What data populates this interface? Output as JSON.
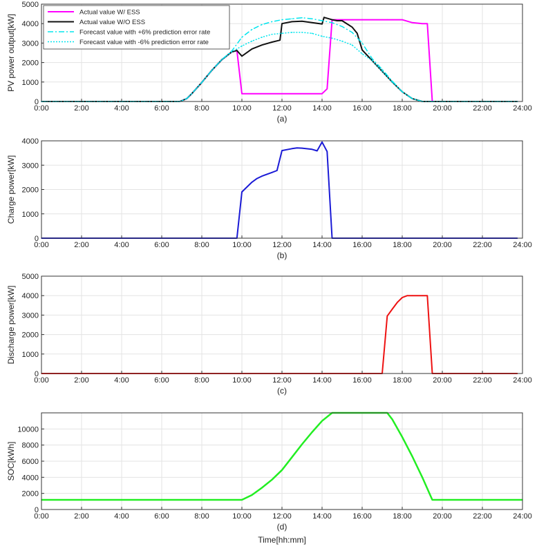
{
  "xlabel": "Time[hh:mm]",
  "chart_data": [
    {
      "id": "a",
      "type": "line",
      "sublabel": "(a)",
      "ylabel": "PV power output[kW]",
      "ylim": [
        0,
        5000
      ],
      "yticks": [
        0,
        1000,
        2000,
        3000,
        4000,
        5000
      ],
      "xlim": [
        0,
        24
      ],
      "xticks": [
        0,
        2,
        4,
        6,
        8,
        10,
        12,
        14,
        16,
        18,
        20,
        22,
        24
      ],
      "xticklabels": [
        "0:00",
        "2:00",
        "4:00",
        "6:00",
        "8:00",
        "10:00",
        "12:00",
        "14:00",
        "16:00",
        "18:00",
        "20:00",
        "22:00",
        "24:00"
      ],
      "grid": true,
      "legend_position": "top-left",
      "series": [
        {
          "name": "Actual value W/ ESS",
          "color": "#ff00ff",
          "dash": "solid",
          "width": 2,
          "x": [
            0,
            6.9,
            7.25,
            7.5,
            8,
            8.5,
            9,
            9.5,
            9.75,
            10,
            10.5,
            11,
            12,
            13,
            14,
            14.25,
            14.5,
            15,
            15.5,
            16,
            16.5,
            17,
            17.25,
            17.5,
            18,
            18.5,
            19,
            19.25,
            19.5,
            20,
            22,
            23.75
          ],
          "y": [
            0,
            0,
            150,
            400,
            980,
            1600,
            2150,
            2550,
            2620,
            400,
            400,
            400,
            400,
            400,
            400,
            650,
            4200,
            4200,
            4200,
            4200,
            4200,
            4200,
            4200,
            4200,
            4200,
            4050,
            4000,
            4000,
            0,
            0,
            0,
            0
          ]
        },
        {
          "name": "Actual value W/O ESS",
          "color": "#111111",
          "dash": "solid",
          "width": 2,
          "x": [
            0,
            6.9,
            7.25,
            7.5,
            8,
            8.5,
            9,
            9.5,
            9.75,
            10,
            10.5,
            11,
            11.5,
            11.9,
            12,
            12.5,
            13,
            13.5,
            14,
            14.1,
            14.5,
            14.75,
            15,
            15.5,
            15.75,
            16,
            16.5,
            17,
            17.5,
            18,
            18.5,
            19,
            19.5,
            20,
            22,
            23.75
          ],
          "y": [
            0,
            0,
            150,
            400,
            980,
            1600,
            2150,
            2550,
            2620,
            2330,
            2700,
            2900,
            3050,
            3150,
            4000,
            4100,
            4120,
            4050,
            3980,
            4320,
            4200,
            4150,
            4150,
            3820,
            3500,
            2650,
            2100,
            1550,
            1000,
            500,
            150,
            0,
            0,
            0,
            0,
            0
          ]
        },
        {
          "name": "Forecast value with +6% prediction error rate",
          "color": "#00e5ee",
          "dash": "8,3,2,3",
          "width": 1.5,
          "x": [
            0,
            6.9,
            7.25,
            7.5,
            8,
            8.5,
            9,
            9.5,
            10,
            10.5,
            11,
            11.5,
            12,
            12.5,
            13,
            13.5,
            14,
            14.5,
            15,
            15.5,
            16,
            16.5,
            17,
            17.5,
            18,
            18.5,
            19,
            19.5,
            20,
            22,
            23.75
          ],
          "y": [
            0,
            0,
            150,
            400,
            980,
            1600,
            2150,
            2600,
            3300,
            3700,
            3950,
            4100,
            4200,
            4250,
            4300,
            4250,
            4150,
            4050,
            3850,
            3550,
            3000,
            2200,
            1650,
            1050,
            500,
            150,
            0,
            0,
            0,
            0,
            0
          ]
        },
        {
          "name": "Forecast value with -6% prediction error rate",
          "color": "#00e5ee",
          "dash": "2,2",
          "width": 1.5,
          "x": [
            0,
            6.9,
            7.25,
            7.5,
            8,
            8.5,
            9,
            9.5,
            10,
            10.5,
            11,
            11.5,
            12,
            12.5,
            13,
            13.5,
            14,
            14.5,
            15,
            15.5,
            16,
            16.5,
            17,
            17.5,
            18,
            18.5,
            19,
            19.5,
            20,
            22,
            23.75
          ],
          "y": [
            0,
            0,
            150,
            400,
            980,
            1600,
            2150,
            2550,
            2850,
            3100,
            3300,
            3450,
            3500,
            3550,
            3550,
            3500,
            3350,
            3250,
            3100,
            2900,
            2450,
            2100,
            1550,
            1000,
            500,
            150,
            0,
            0,
            0,
            0,
            0
          ]
        }
      ]
    },
    {
      "id": "b",
      "type": "line",
      "sublabel": "(b)",
      "ylabel": "Charge power[kW]",
      "ylim": [
        0,
        4000
      ],
      "yticks": [
        0,
        1000,
        2000,
        3000,
        4000
      ],
      "xlim": [
        0,
        24
      ],
      "xticks": [
        0,
        2,
        4,
        6,
        8,
        10,
        12,
        14,
        16,
        18,
        20,
        22,
        24
      ],
      "xticklabels": [
        "0:00",
        "2:00",
        "4:00",
        "6:00",
        "8:00",
        "10:00",
        "12:00",
        "14:00",
        "16:00",
        "18:00",
        "20:00",
        "22:00",
        "24:00"
      ],
      "grid": true,
      "series": [
        {
          "color": "#1a1ad6",
          "dash": "solid",
          "width": 2,
          "x": [
            0,
            9.75,
            10,
            10.5,
            10.75,
            11,
            11.5,
            11.75,
            12,
            12.5,
            12.75,
            13,
            13.5,
            13.75,
            14,
            14.25,
            14.5,
            16,
            18,
            20,
            23.75
          ],
          "y": [
            0,
            0,
            1900,
            2300,
            2450,
            2550,
            2700,
            2780,
            3600,
            3680,
            3710,
            3700,
            3650,
            3590,
            3950,
            3560,
            0,
            0,
            0,
            0,
            0
          ]
        }
      ]
    },
    {
      "id": "c",
      "type": "line",
      "sublabel": "(c)",
      "ylabel": "Discharge power[kW]",
      "ylim": [
        0,
        5000
      ],
      "yticks": [
        0,
        1000,
        2000,
        3000,
        4000,
        5000
      ],
      "xlim": [
        0,
        24
      ],
      "xticks": [
        0,
        2,
        4,
        6,
        8,
        10,
        12,
        14,
        16,
        18,
        20,
        22,
        24
      ],
      "xticklabels": [
        "0:00",
        "2:00",
        "4:00",
        "6:00",
        "8:00",
        "10:00",
        "12:00",
        "14:00",
        "16:00",
        "18:00",
        "20:00",
        "22:00",
        "24:00"
      ],
      "grid": true,
      "series": [
        {
          "color": "#ee1111",
          "dash": "solid",
          "width": 2,
          "x": [
            0,
            17,
            17.25,
            17.5,
            17.75,
            18,
            18.25,
            18.5,
            18.75,
            19,
            19.25,
            19.5,
            20,
            22,
            23.75
          ],
          "y": [
            0,
            0,
            2950,
            3300,
            3650,
            3900,
            4000,
            4000,
            4000,
            4000,
            4000,
            0,
            0,
            0,
            0
          ]
        }
      ]
    },
    {
      "id": "d",
      "type": "line",
      "sublabel": "(d)",
      "ylabel": "SOC[kWh]",
      "ylim": [
        0,
        12000
      ],
      "yticks": [
        0,
        2000,
        4000,
        6000,
        8000,
        10000
      ],
      "xlim": [
        0,
        24
      ],
      "xticks": [
        0,
        2,
        4,
        6,
        8,
        10,
        12,
        14,
        16,
        18,
        20,
        22,
        24
      ],
      "xticklabels": [
        "0:00",
        "2:00",
        "4:00",
        "6:00",
        "8:00",
        "10:00",
        "12:00",
        "14:00",
        "16:00",
        "18:00",
        "20:00",
        "22:00",
        "24:00"
      ],
      "grid": true,
      "series": [
        {
          "color": "#22ee22",
          "dash": "solid",
          "width": 2.5,
          "x": [
            0,
            10,
            10.5,
            11,
            11.5,
            12,
            12.5,
            13,
            13.5,
            14,
            14.5,
            15,
            16,
            17,
            17.25,
            17.5,
            18,
            18.5,
            19,
            19.5,
            20,
            22,
            24
          ],
          "y": [
            1200,
            1200,
            1800,
            2700,
            3700,
            4900,
            6500,
            8100,
            9600,
            11000,
            12000,
            12000,
            12000,
            12000,
            12000,
            11200,
            9000,
            6600,
            4000,
            1200,
            1200,
            1200,
            1200
          ]
        }
      ]
    }
  ]
}
